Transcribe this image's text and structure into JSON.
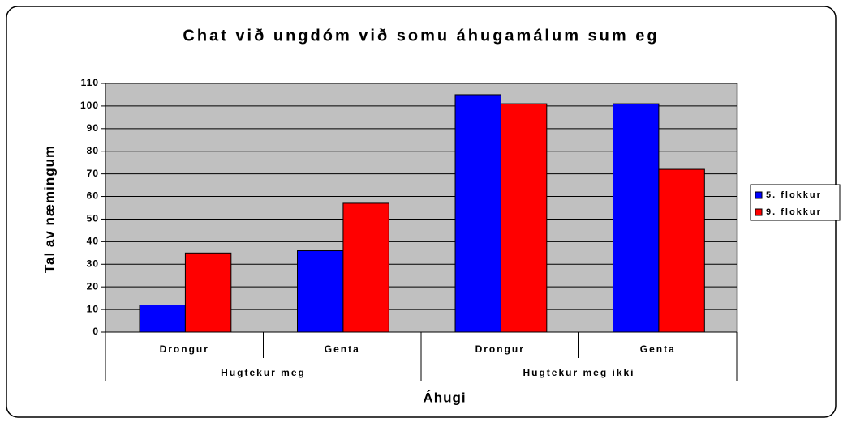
{
  "chart_data": {
    "type": "bar",
    "title": "Chat við ungdóm við somu áhugamálum sum eg",
    "x_label": "Áhugi",
    "y_label": "Tal av næmingum",
    "categories": [
      "Drongur",
      "Genta",
      "Drongur",
      "Genta"
    ],
    "group_labels": [
      "Hugtekur meg",
      "Hugtekur meg ikki"
    ],
    "series": [
      {
        "name": "5. flokkur",
        "color": "#0000ff",
        "values": [
          12,
          36,
          105,
          101
        ]
      },
      {
        "name": "9. flokkur",
        "color": "#ff0000",
        "values": [
          35,
          57,
          101,
          72
        ]
      }
    ],
    "ylim": [
      0,
      110
    ],
    "yticks": [
      0,
      10,
      20,
      30,
      40,
      50,
      60,
      70,
      80,
      90,
      100,
      110
    ],
    "grid": true,
    "legend": "right"
  }
}
